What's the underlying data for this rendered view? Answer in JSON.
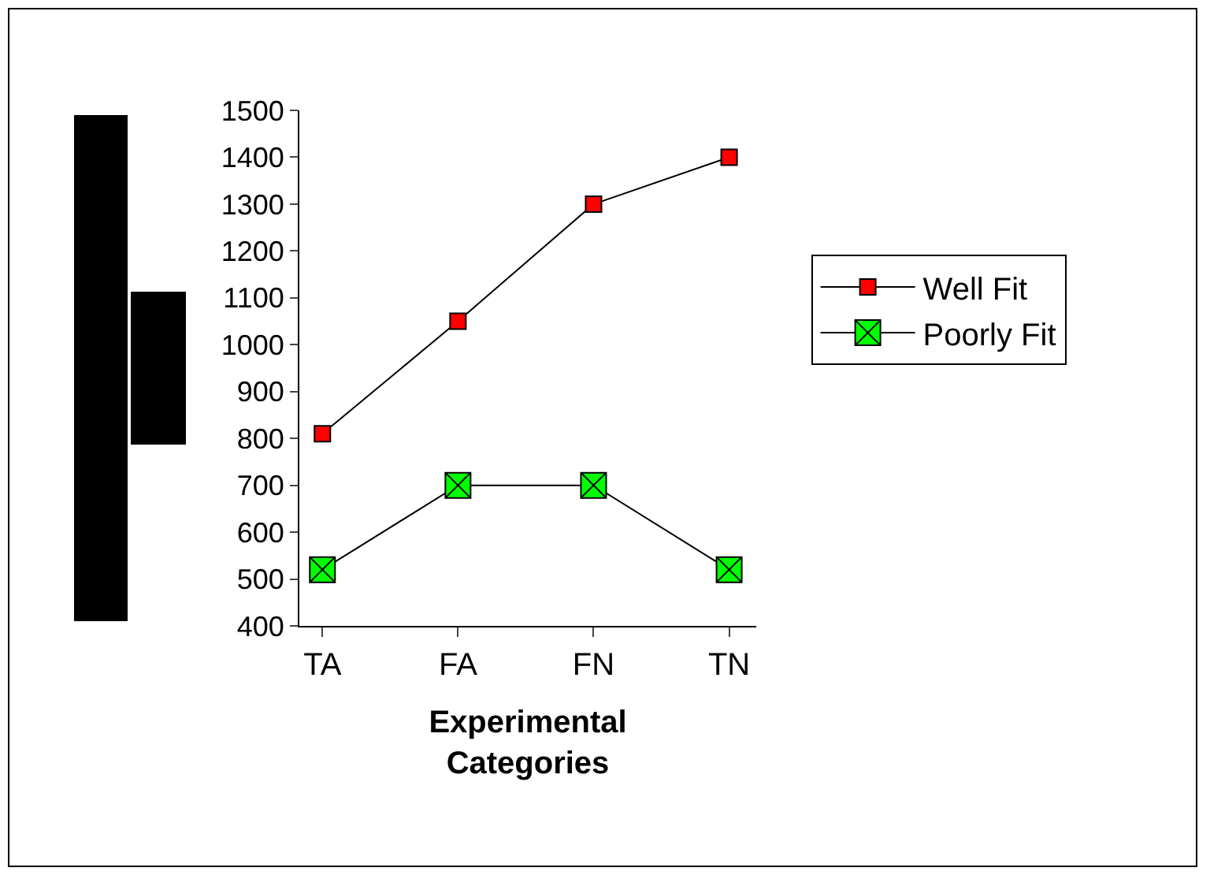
{
  "chart_data": {
    "type": "line",
    "xlabel": "Experimental\nCategories",
    "categories": [
      "TA",
      "FA",
      "FN",
      "TN"
    ],
    "series": [
      {
        "name": "Well Fit",
        "color": "#ff0000",
        "marker": "square",
        "values": [
          810,
          1050,
          1300,
          1400
        ]
      },
      {
        "name": "Poorly Fit",
        "color": "#00ff00",
        "marker": "cross",
        "values": [
          520,
          700,
          700,
          520
        ]
      }
    ],
    "ylim": [
      400,
      1500
    ],
    "yticks": [
      400,
      500,
      600,
      700,
      800,
      900,
      1000,
      1100,
      1200,
      1300,
      1400,
      1500
    ],
    "grid": false,
    "legend": "right"
  }
}
